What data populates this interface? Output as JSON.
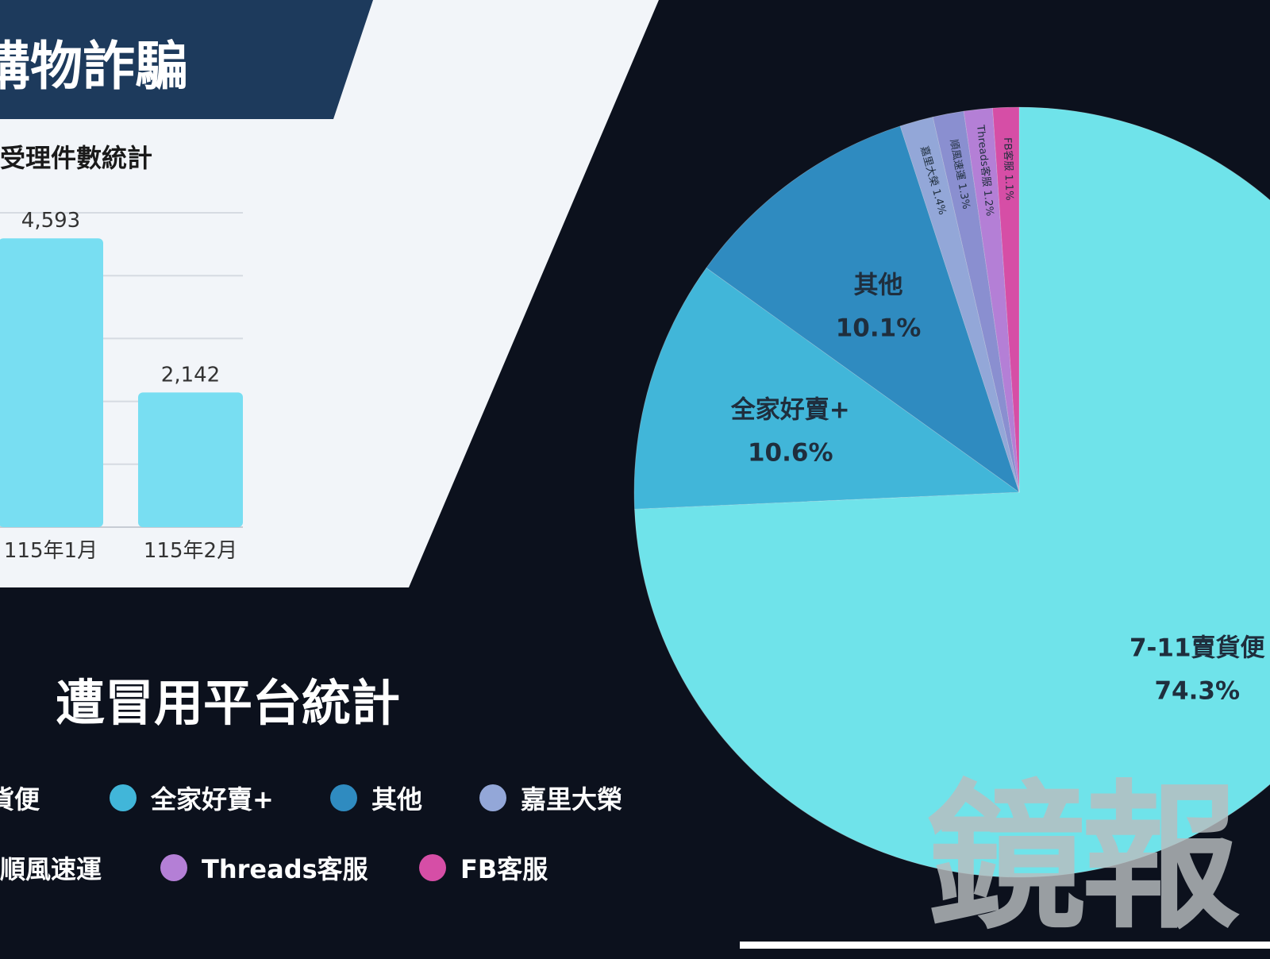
{
  "banner": {
    "title": "購物詐騙"
  },
  "bar_subtitle": "受理件數統計",
  "platform_title": "遭冒用平台統計",
  "watermark": "鏡報",
  "legend": [
    {
      "label": "貨便",
      "color": "#6fe3ea"
    },
    {
      "label": "全家好賣+",
      "color": "#41b6d9"
    },
    {
      "label": "其他",
      "color": "#2f8bc0"
    },
    {
      "label": "嘉里大榮",
      "color": "#93a7d8"
    },
    {
      "label": "順風速運",
      "color": "#8a8fd0"
    },
    {
      "label": "Threads客服",
      "color": "#b47fd6"
    },
    {
      "label": "FB客服",
      "color": "#d64ea6"
    }
  ],
  "chart_data": [
    {
      "type": "bar",
      "title": "受理件數統計",
      "categories": [
        "115年1月",
        "115年2月"
      ],
      "values": [
        4593,
        2142
      ],
      "value_labels": [
        "4,593",
        "2,142"
      ],
      "ylim": [
        0,
        5000
      ],
      "grid": true,
      "bar_color": "#78def2"
    },
    {
      "type": "pie",
      "title": "遭冒用平台統計",
      "slices": [
        {
          "label": "7-11賣貨便",
          "value": 74.3,
          "value_label": "74.3%",
          "color": "#6fe3ea"
        },
        {
          "label": "全家好賣+",
          "value": 10.6,
          "value_label": "10.6%",
          "color": "#41b6d9"
        },
        {
          "label": "其他",
          "value": 10.1,
          "value_label": "10.1%",
          "color": "#2f8bc0"
        },
        {
          "label": "嘉里大榮",
          "value": 1.4,
          "value_label": "1.4%",
          "color": "#93a7d8"
        },
        {
          "label": "順風速運",
          "value": 1.3,
          "value_label": "1.3%",
          "color": "#8a8fd0"
        },
        {
          "label": "Threads客服",
          "value": 1.2,
          "value_label": "1.2%",
          "color": "#b47fd6"
        },
        {
          "label": "FB客服",
          "value": 1.1,
          "value_label": "1.1%",
          "color": "#d64ea6"
        }
      ]
    }
  ]
}
